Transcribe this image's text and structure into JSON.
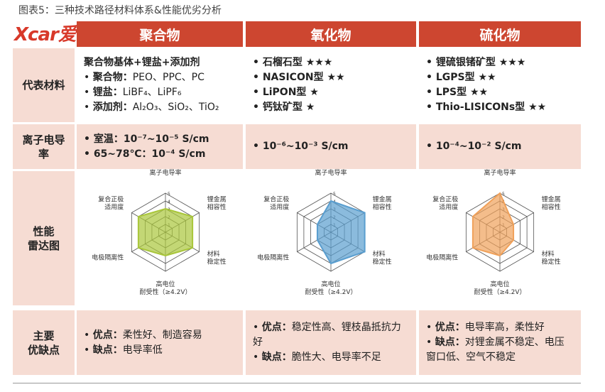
{
  "title": "图表5：三种技术路径材料体系&性能优劣分析",
  "logo": "Xcar爱卡",
  "table": {
    "columns": [
      "聚合物",
      "氧化物",
      "硫化物"
    ],
    "rows": [
      {
        "label": [
          "代表材料"
        ],
        "cells": [
          {
            "heading": "聚合物基体+锂盐+添加剂",
            "items": [
              {
                "key": "聚合物：",
                "text": "PEO、PPC、PC"
              },
              {
                "key": "锂盐：",
                "text": "LiBF₄、LiPF₆"
              },
              {
                "key": "添加剂：",
                "text": "Al₂O₃、SiO₂、TiO₂"
              }
            ]
          },
          {
            "items": [
              {
                "text": "石榴石型 ★★★"
              },
              {
                "text": "NASICON型 ★★"
              },
              {
                "text": "LiPON型 ★"
              },
              {
                "text": "钙钛矿型 ★"
              }
            ]
          },
          {
            "items": [
              {
                "text": "锂硫银锗矿型 ★★★"
              },
              {
                "text": "LGPS型 ★★"
              },
              {
                "text": "LPS型 ★★"
              },
              {
                "text": "Thio-LISICONs型 ★★"
              }
            ]
          }
        ]
      },
      {
        "label": [
          "离子电导",
          "率"
        ],
        "cells": [
          {
            "items": [
              {
                "text": "室温：10⁻⁷~10⁻⁵ S/cm"
              },
              {
                "text": "65~78℃：10⁻⁴ S/cm"
              }
            ]
          },
          {
            "items": [
              {
                "text": "10⁻⁶~10⁻³ S/cm"
              }
            ]
          },
          {
            "items": [
              {
                "text": "10⁻⁴~10⁻² S/cm"
              }
            ]
          }
        ]
      },
      {
        "label": [
          "性能",
          "雷达图"
        ],
        "radar": {
          "axes": [
            [
              "离子电导率"
            ],
            [
              "锂金属",
              "相容性"
            ],
            [
              "材料",
              "稳定性"
            ],
            [
              "高电位",
              "耐受性（≥4.2V）"
            ],
            [
              "电极隔离性"
            ],
            [
              "复合正极",
              "适用度"
            ]
          ],
          "rlim": [
            0,
            5
          ],
          "rticks": [
            1,
            2,
            3,
            4,
            5
          ],
          "series": [
            {
              "color": "#a9c63a",
              "values": [
                3,
                4,
                4,
                3,
                4,
                4
              ]
            },
            {
              "color": "#5a9ecf",
              "values": [
                4,
                5,
                5,
                4,
                2,
                2
              ]
            },
            {
              "color": "#f0a15a",
              "values": [
                5,
                2,
                2,
                3,
                4,
                4
              ]
            }
          ]
        }
      },
      {
        "label": [
          "主要",
          "优缺点"
        ],
        "cells": [
          {
            "items": [
              {
                "key": "优点：",
                "text": "柔性好、制造容易"
              },
              {
                "key": "缺点：",
                "text": "电导率低"
              }
            ]
          },
          {
            "items": [
              {
                "key": "优点：",
                "text": "稳定性高、锂枝晶抵抗力好"
              },
              {
                "key": "缺点：",
                "text": "脆性大、电导率不足"
              }
            ]
          },
          {
            "items": [
              {
                "key": "优点：",
                "text": "电导率高，柔性好"
              },
              {
                "key": "缺点：",
                "text": "对锂金属不稳定、电压窗口低、空气不稳定"
              }
            ]
          }
        ]
      }
    ]
  }
}
